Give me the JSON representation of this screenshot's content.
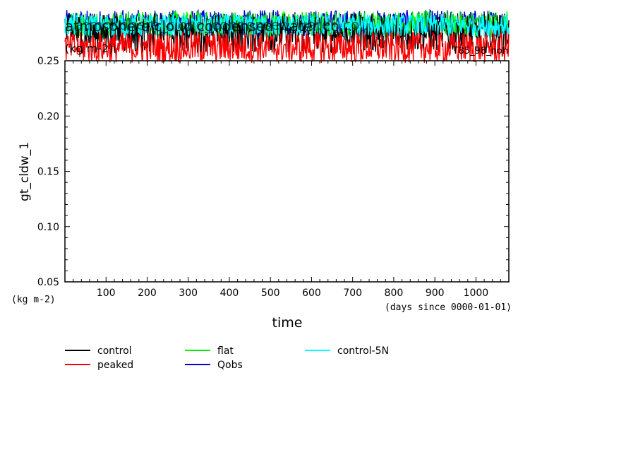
{
  "chart_data": {
    "type": "line",
    "title": "atmosphere cloud condensed water co...",
    "title_overprint": "atmosphere_cloud_condensed_water_co...",
    "title_units": "(kg m-2)",
    "corner_label": "T85_98_noh",
    "ylabel": "gt_cldw_1",
    "yunits_label": "(kg m-2)",
    "xlabel": "time",
    "xunits_label": "(days since 0000-01-01)",
    "xlim": [
      0,
      1080
    ],
    "ylim": [
      0.05,
      0.25
    ],
    "xticks": [
      100,
      200,
      300,
      400,
      500,
      600,
      700,
      800,
      900,
      1000
    ],
    "yticks": [
      0.05,
      0.1,
      0.15,
      0.2,
      0.25
    ],
    "ytick_labels": [
      "0.05",
      "0.10",
      "0.15",
      "0.20",
      "0.25"
    ],
    "grid": false,
    "legend_position": "bottom",
    "series": [
      {
        "name": "control",
        "color": "#000000",
        "mean": 0.275,
        "spread": 0.018
      },
      {
        "name": "peaked",
        "color": "#ff0000",
        "mean": 0.262,
        "spread": 0.014
      },
      {
        "name": "flat",
        "color": "#00ee00",
        "mean": 0.283,
        "spread": 0.012
      },
      {
        "name": "Qobs",
        "color": "#0000cc",
        "mean": 0.284,
        "spread": 0.012
      },
      {
        "name": "control-5N",
        "color": "#00ffff",
        "mean": 0.282,
        "spread": 0.01
      }
    ],
    "legend_order": [
      "control",
      "flat",
      "control-5N",
      "peaked",
      "Qobs"
    ]
  }
}
